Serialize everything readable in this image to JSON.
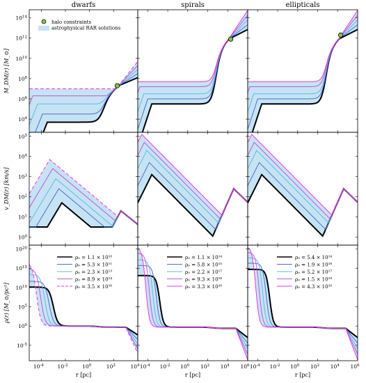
{
  "chart_data": [
    {
      "type": "line",
      "panel": "mass-dwarfs",
      "column": "dwarfs",
      "ylabel": "M_DM(r)  [M_⊙]",
      "xlim_log10": [
        -5,
        4
      ],
      "ylim_log10": [
        2.7,
        14.8
      ],
      "y_log_ticks": [
        4,
        6,
        8,
        10,
        12,
        14
      ],
      "x_log_ticks": [
        -4,
        -2,
        0,
        2,
        4
      ]
    },
    {
      "type": "line",
      "panel": "mass-spirals",
      "column": "spirals",
      "xlim_log10": [
        -5,
        6
      ],
      "ylim_log10": [
        2.7,
        14.8
      ]
    },
    {
      "type": "line",
      "panel": "mass-ellipticals",
      "column": "ellipticals",
      "xlim_log10": [
        -5,
        6
      ],
      "ylim_log10": [
        2.7,
        14.8
      ]
    },
    {
      "type": "line",
      "panel": "vel-dwarfs",
      "column": "dwarfs",
      "ylabel": "v_DM(r)  [km/s]",
      "ylim_log10": [
        -0.4,
        5.2
      ],
      "y_log_ticks": [
        0,
        1,
        2,
        3,
        4,
        5
      ]
    },
    {
      "type": "line",
      "panel": "vel-spirals",
      "column": "spirals",
      "ylim_log10": [
        -0.4,
        5.2
      ]
    },
    {
      "type": "line",
      "panel": "vel-ellipticals",
      "column": "ellipticals",
      "ylim_log10": [
        -0.4,
        5.2
      ]
    },
    {
      "type": "line",
      "panel": "rho-dwarfs",
      "column": "dwarfs",
      "ylabel": "ρ(r)  [M_⊙/pc³]",
      "ylim_log10": [
        -9,
        21
      ],
      "y_log_ticks": [
        -5,
        0,
        5,
        10,
        15,
        20
      ],
      "legend": [
        "ρ₀ = 1.1 × 10¹⁰",
        "ρ₀ = 5.3 × 10¹¹",
        "ρ₀ = 2.3 × 10¹³",
        "ρ₀ = 8.9 × 10¹⁴",
        "ρ₀ = 3.5 × 10¹⁶"
      ]
    },
    {
      "type": "line",
      "panel": "rho-spirals",
      "column": "spirals",
      "ylim_log10": [
        -9,
        21
      ],
      "legend": [
        "ρ₀ = 1.1 × 10¹⁴",
        "ρ₀ = 5.8 × 10¹⁵",
        "ρ₀ = 2.2 × 10¹⁷",
        "ρ₀ = 9.3 × 10¹⁸",
        "ρ₀ = 3.3 × 10²⁰"
      ]
    },
    {
      "type": "line",
      "panel": "rho-ellipticals",
      "column": "ellipticals",
      "ylim_log10": [
        -9,
        21
      ],
      "legend": [
        "ρ₀ = 5.4 × 10¹⁴",
        "ρ₀ = 1.9 × 10¹⁶",
        "ρ₀ = 5.2 × 10¹⁷",
        "ρ₀ = 1.5 × 10¹⁹",
        "ρ₀ = 4.3 × 10²⁰"
      ]
    }
  ],
  "columns": [
    "dwarfs",
    "spirals",
    "ellipticals"
  ],
  "x_label": "r   [pc]",
  "legend_top": [
    "halo constraints",
    "astrophysical RAR solutions"
  ],
  "colors": {
    "band": "#c6e3f3",
    "black": "#000000",
    "blue1": "#4e6bd1",
    "blue2": "#5fb8e8",
    "magenta1": "#b65ae0",
    "magenta2": "#ee33ee",
    "marker": "#8bc34a"
  }
}
